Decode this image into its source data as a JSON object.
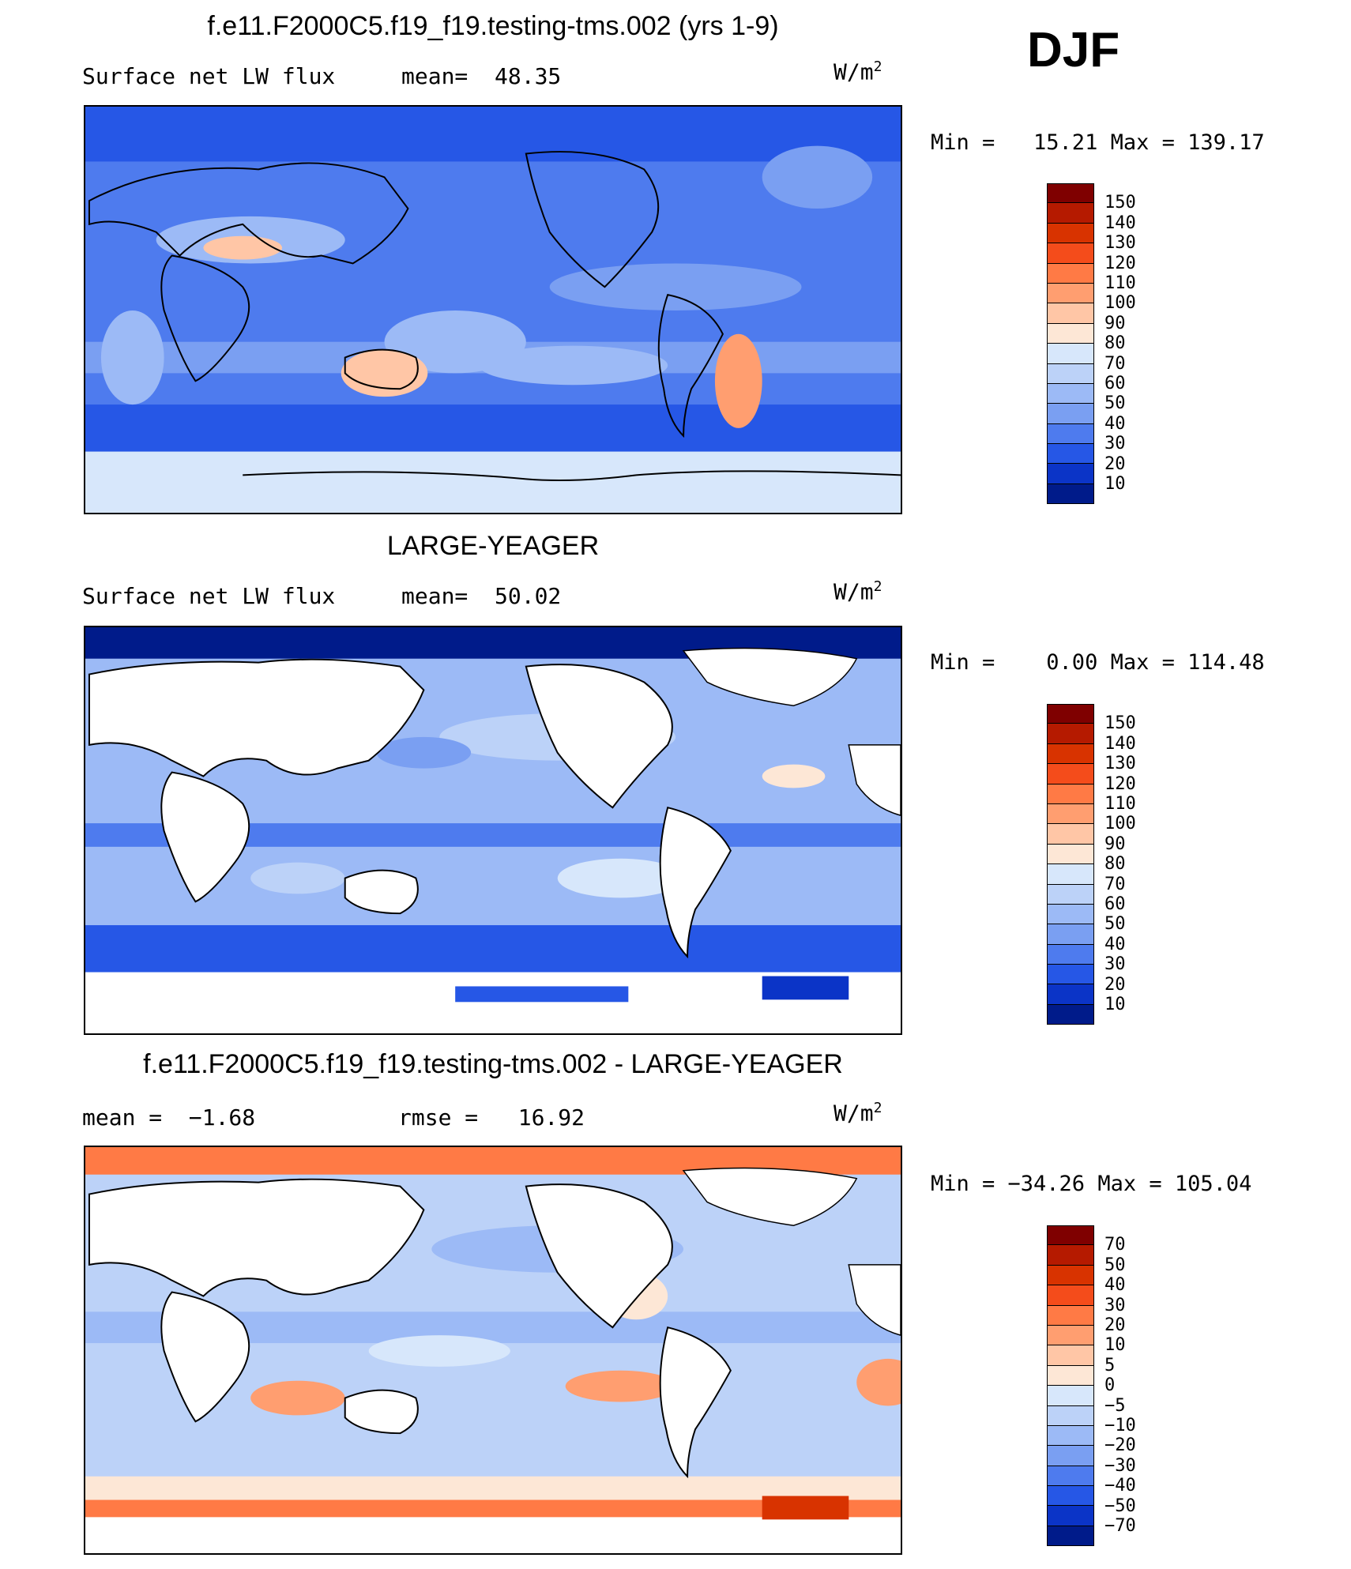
{
  "season": "DJF",
  "panels": [
    {
      "title": "f.e11.F2000C5.f19_f19.testing-tms.002 (yrs 1-9)",
      "left_label": "Surface net LW flux",
      "stat_label": "mean=  48.35",
      "units": "W/m",
      "units_sup": "2",
      "minmax": "Min =   15.21 Max = 139.17",
      "colorbar_labels": [
        "150",
        "140",
        "130",
        "120",
        "110",
        "100",
        "90",
        "80",
        "70",
        "60",
        "50",
        "40",
        "30",
        "20",
        "10"
      ]
    },
    {
      "title": "LARGE-YEAGER",
      "left_label": "Surface net LW flux",
      "stat_label": "mean=  50.02",
      "units": "W/m",
      "units_sup": "2",
      "minmax": "Min =    0.00 Max = 114.48",
      "colorbar_labels": [
        "150",
        "140",
        "130",
        "120",
        "110",
        "100",
        "90",
        "80",
        "70",
        "60",
        "50",
        "40",
        "30",
        "20",
        "10"
      ]
    },
    {
      "title": "f.e11.F2000C5.f19_f19.testing-tms.002 - LARGE-YEAGER",
      "left_label": "mean =  −1.68",
      "stat_label": "rmse =   16.92",
      "units": "W/m",
      "units_sup": "2",
      "minmax": "Min = −34.26 Max = 105.04",
      "colorbar_labels": [
        "70",
        "50",
        "40",
        "30",
        "20",
        "10",
        "5",
        "0",
        "−5",
        "−10",
        "−20",
        "−30",
        "−40",
        "−50",
        "−70"
      ]
    }
  ],
  "colors": {
    "palette": [
      "#7f0000",
      "#b51a00",
      "#d83300",
      "#f44c1b",
      "#ff7a45",
      "#ff9e70",
      "#ffc6a6",
      "#fde7d6",
      "#d7e7fb",
      "#bcd2f8",
      "#9cbaf6",
      "#7a9ff2",
      "#4e7bee",
      "#2657e6",
      "#0b34c7",
      "#001b8a"
    ]
  },
  "chart_data": [
    {
      "type": "heatmap",
      "title": "f.e11.F2000C5.f19_f19.testing-tms.002 (yrs 1-9)",
      "subtitle": "Surface net LW flux",
      "units": "W/m2",
      "mean": 48.35,
      "min": 15.21,
      "max": 139.17,
      "contour_levels": [
        10,
        20,
        30,
        40,
        50,
        60,
        70,
        80,
        90,
        100,
        110,
        120,
        130,
        140,
        150
      ]
    },
    {
      "type": "heatmap",
      "title": "LARGE-YEAGER",
      "subtitle": "Surface net LW flux",
      "units": "W/m2",
      "mean": 50.02,
      "min": 0.0,
      "max": 114.48,
      "contour_levels": [
        10,
        20,
        30,
        40,
        50,
        60,
        70,
        80,
        90,
        100,
        110,
        120,
        130,
        140,
        150
      ]
    },
    {
      "type": "heatmap",
      "title": "f.e11.F2000C5.f19_f19.testing-tms.002 - LARGE-YEAGER",
      "units": "W/m2",
      "mean": -1.68,
      "rmse": 16.92,
      "min": -34.26,
      "max": 105.04,
      "contour_levels": [
        -70,
        -50,
        -40,
        -30,
        -20,
        -10,
        -5,
        0,
        5,
        10,
        20,
        30,
        40,
        50,
        70
      ]
    }
  ]
}
